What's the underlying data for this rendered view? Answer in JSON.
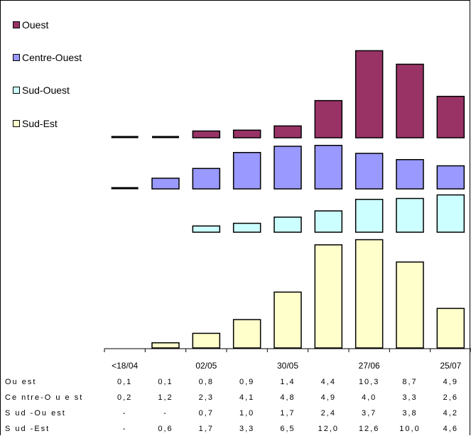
{
  "chart_data": {
    "type": "bar",
    "layout": "stacked-panels",
    "categories": [
      "<18/04",
      "",
      "02/05",
      "",
      "30/05",
      "",
      "27/06",
      "",
      "25/07"
    ],
    "series": [
      {
        "name": "Ouest",
        "color": "#993366",
        "values": [
          0.1,
          0.1,
          0.8,
          0.9,
          1.4,
          4.4,
          10.3,
          8.7,
          4.9
        ],
        "labels": [
          "0,1",
          "0,1",
          "0,8",
          "0,9",
          "1,4",
          "4,4",
          "10,3",
          "8,7",
          "4,9"
        ]
      },
      {
        "name": "Centre-Ouest",
        "color": "#9999FF",
        "values": [
          0.2,
          1.2,
          2.3,
          4.1,
          4.8,
          4.9,
          4.0,
          3.3,
          2.6
        ],
        "labels": [
          "0,2",
          "1,2",
          "2,3",
          "4,1",
          "4,8",
          "4,9",
          "4,0",
          "3,3",
          "2,6"
        ]
      },
      {
        "name": "Sud-Ouest",
        "color": "#CCFFFF",
        "values": [
          null,
          null,
          0.7,
          1.0,
          1.7,
          2.4,
          3.7,
          3.8,
          4.2
        ],
        "labels": [
          "-",
          "-",
          "0,7",
          "1,0",
          "1,7",
          "2,4",
          "3,7",
          "3,8",
          "4,2"
        ]
      },
      {
        "name": "Sud-Est",
        "color": "#FFFFCC",
        "values": [
          null,
          0.6,
          1.7,
          3.3,
          6.5,
          12.0,
          12.6,
          10.0,
          4.6
        ],
        "labels": [
          "-",
          "0,6",
          "1,7",
          "3,3",
          "6,5",
          "12,0",
          "12,6",
          "10,0",
          "4,6"
        ]
      }
    ],
    "table_labels": [
      "Ou est",
      "Ce ntre-O u e st",
      "S ud -Ou est",
      "S ud -Est"
    ],
    "legend_position": "top-left",
    "grid": false
  }
}
